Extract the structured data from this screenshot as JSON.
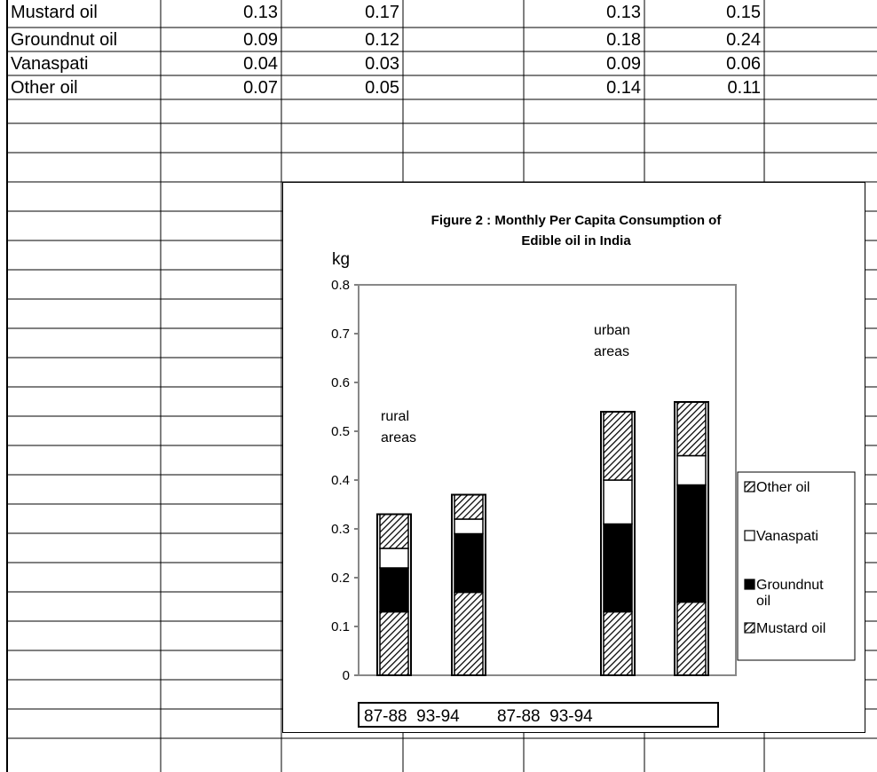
{
  "sheet": {
    "rows": [
      {
        "label": "Mustard oil",
        "values": [
          "0.13",
          "0.17",
          "",
          "0.13",
          "0.15",
          ""
        ]
      },
      {
        "label": "Groundnut oil",
        "values": [
          "0.09",
          "0.12",
          "",
          "0.18",
          "0.24",
          ""
        ]
      },
      {
        "label": "Vanaspati",
        "values": [
          "0.04",
          "0.03",
          "",
          "0.09",
          "0.06",
          ""
        ]
      },
      {
        "label": "Other oil",
        "values": [
          "0.07",
          "0.05",
          "",
          "0.14",
          "0.11",
          ""
        ]
      }
    ]
  },
  "chart_data": {
    "type": "bar",
    "stacked": true,
    "title": "Figure 2 : Monthly Per Capita Consumption of Edible oil in India",
    "title_lines": [
      "Figure 2 : Monthly Per Capita Consumption of",
      "Edible oil in India"
    ],
    "ylabel": "kg",
    "ylim": [
      0,
      0.8
    ],
    "yticks": [
      "0",
      "0.1",
      "0.2",
      "0.3",
      "0.4",
      "0.5",
      "0.6",
      "0.7",
      "0.8"
    ],
    "categories": [
      "87-88",
      "93-94",
      "87-88",
      "93-94"
    ],
    "x_label_text": "87-88  93-94        87-88  93-94",
    "series": [
      {
        "name": "Mustard oil",
        "values": [
          0.13,
          0.17,
          0.13,
          0.15
        ],
        "fill": "hatch"
      },
      {
        "name": "Groundnut oil",
        "values": [
          0.09,
          0.12,
          0.18,
          0.24
        ],
        "fill": "#000000"
      },
      {
        "name": "Vanaspati",
        "values": [
          0.04,
          0.03,
          0.09,
          0.06
        ],
        "fill": "#ffffff"
      },
      {
        "name": "Other oil",
        "values": [
          0.07,
          0.05,
          0.14,
          0.11
        ],
        "fill": "hatch"
      }
    ],
    "legend_labels": [
      "Other oil",
      "Vanaspati",
      "Groundnut oil",
      "Mustard oil"
    ],
    "legend_position": "right",
    "annotations": [
      {
        "lines": [
          "rural",
          "areas"
        ]
      },
      {
        "lines": [
          "urban",
          "areas"
        ]
      }
    ],
    "grid": false
  }
}
